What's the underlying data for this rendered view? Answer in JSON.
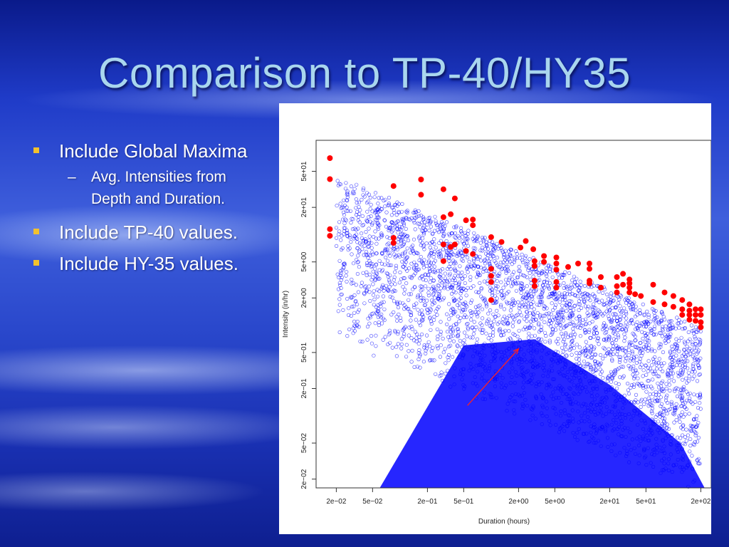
{
  "slide": {
    "title": "Comparison to TP-40/HY35",
    "bullets": [
      {
        "text": "Include Global Maxima",
        "sub": [
          {
            "marker": "–",
            "text": "Avg. Intensities from Depth and Duration."
          }
        ]
      },
      {
        "text": "Include TP-40 values."
      },
      {
        "text": "Include HY-35 values."
      }
    ]
  },
  "colors": {
    "blue_points": "#0000ff",
    "red_points": "#ff0000",
    "bullet": "#f2c12e"
  },
  "chart_data": {
    "type": "scatter",
    "xlabel": "Duration (hours)",
    "ylabel": "Intensity (in/hr)",
    "x_scale": "log",
    "y_scale": "log",
    "xlim": [
      0.012,
      260
    ],
    "ylim": [
      0.016,
      110
    ],
    "x_ticks": [
      {
        "v": 0.02,
        "label": "2e−02"
      },
      {
        "v": 0.05,
        "label": "5e−02"
      },
      {
        "v": 0.2,
        "label": "2e−01"
      },
      {
        "v": 0.5,
        "label": "5e−01"
      },
      {
        "v": 2,
        "label": "2e+00"
      },
      {
        "v": 5,
        "label": "5e+00"
      },
      {
        "v": 20,
        "label": "2e+01"
      },
      {
        "v": 50,
        "label": "5e+01"
      },
      {
        "v": 200,
        "label": "2e+02"
      }
    ],
    "y_ticks": [
      {
        "v": 0.02,
        "label": "2e−02"
      },
      {
        "v": 0.05,
        "label": "5e−02"
      },
      {
        "v": 0.2,
        "label": "2e−01"
      },
      {
        "v": 0.5,
        "label": "5e−01"
      },
      {
        "v": 2,
        "label": "2e+00"
      },
      {
        "v": 5,
        "label": "5e+00"
      },
      {
        "v": 20,
        "label": "2e+01"
      },
      {
        "v": 50,
        "label": "5e+01"
      }
    ],
    "grid": false,
    "series": [
      {
        "color": "#ff0000",
        "marker": "filled-circle",
        "points": [
          [
            0.017,
            70
          ],
          [
            0.017,
            41
          ],
          [
            0.017,
            11.5
          ],
          [
            0.017,
            9.7
          ],
          [
            0.085,
            34.4
          ],
          [
            0.085,
            9.2
          ],
          [
            0.085,
            8.1
          ],
          [
            0.17,
            40.6
          ],
          [
            0.17,
            27.6
          ],
          [
            0.3,
            31.7
          ],
          [
            0.3,
            15.6
          ],
          [
            0.3,
            7.8
          ],
          [
            0.3,
            5.1
          ],
          [
            0.36,
            16.8
          ],
          [
            0.36,
            7.3
          ],
          [
            0.4,
            25.1
          ],
          [
            0.4,
            7.8
          ],
          [
            0.53,
            6.6
          ],
          [
            0.53,
            14.4
          ],
          [
            0.63,
            14.7
          ],
          [
            0.63,
            6.1
          ],
          [
            0.63,
            12.7
          ],
          [
            1.0,
            9.4
          ],
          [
            1.0,
            4.2
          ],
          [
            1.0,
            3.5
          ],
          [
            1.0,
            3.0
          ],
          [
            1.0,
            1.9
          ],
          [
            1.3,
            8.3
          ],
          [
            2.1,
            7.2
          ],
          [
            2.4,
            8.5
          ],
          [
            2.9,
            6.9
          ],
          [
            3.0,
            5.1
          ],
          [
            3.0,
            4.5
          ],
          [
            3.0,
            3.1
          ],
          [
            3.0,
            2.7
          ],
          [
            3.8,
            5.0
          ],
          [
            3.8,
            5.8
          ],
          [
            5.2,
            4.8
          ],
          [
            5.2,
            5.6
          ],
          [
            5.2,
            4.1
          ],
          [
            5.2,
            3.0
          ],
          [
            5.2,
            2.6
          ],
          [
            7.0,
            4.4
          ],
          [
            9.0,
            4.8
          ],
          [
            12,
            4.8
          ],
          [
            12,
            4.2
          ],
          [
            12,
            3.1
          ],
          [
            12,
            2.9
          ],
          [
            16,
            3.4
          ],
          [
            16,
            2.6
          ],
          [
            24,
            3.4
          ],
          [
            24,
            2.7
          ],
          [
            24,
            2.3
          ],
          [
            28,
            3.7
          ],
          [
            28,
            2.8
          ],
          [
            33,
            3.2
          ],
          [
            33,
            2.9
          ],
          [
            33,
            2.6
          ],
          [
            33,
            2.3
          ],
          [
            38,
            2.2
          ],
          [
            44,
            2.1
          ],
          [
            60,
            2.8
          ],
          [
            60,
            1.8
          ],
          [
            80,
            2.3
          ],
          [
            80,
            1.7
          ],
          [
            100,
            2.1
          ],
          [
            100,
            1.6
          ],
          [
            125,
            1.9
          ],
          [
            125,
            1.5
          ],
          [
            125,
            1.3
          ],
          [
            150,
            1.7
          ],
          [
            150,
            1.45
          ],
          [
            150,
            1.3
          ],
          [
            150,
            1.15
          ],
          [
            175,
            1.5
          ],
          [
            175,
            1.3
          ],
          [
            175,
            1.12
          ],
          [
            200,
            1.5
          ],
          [
            200,
            1.3
          ],
          [
            200,
            1.08
          ],
          [
            200,
            0.95
          ]
        ]
      }
    ],
    "annotations": [
      {
        "type": "arrow",
        "from": [
          0.55,
          0.13
        ],
        "to": [
          2.0,
          0.55
        ],
        "color": "#ff0000"
      }
    ]
  }
}
